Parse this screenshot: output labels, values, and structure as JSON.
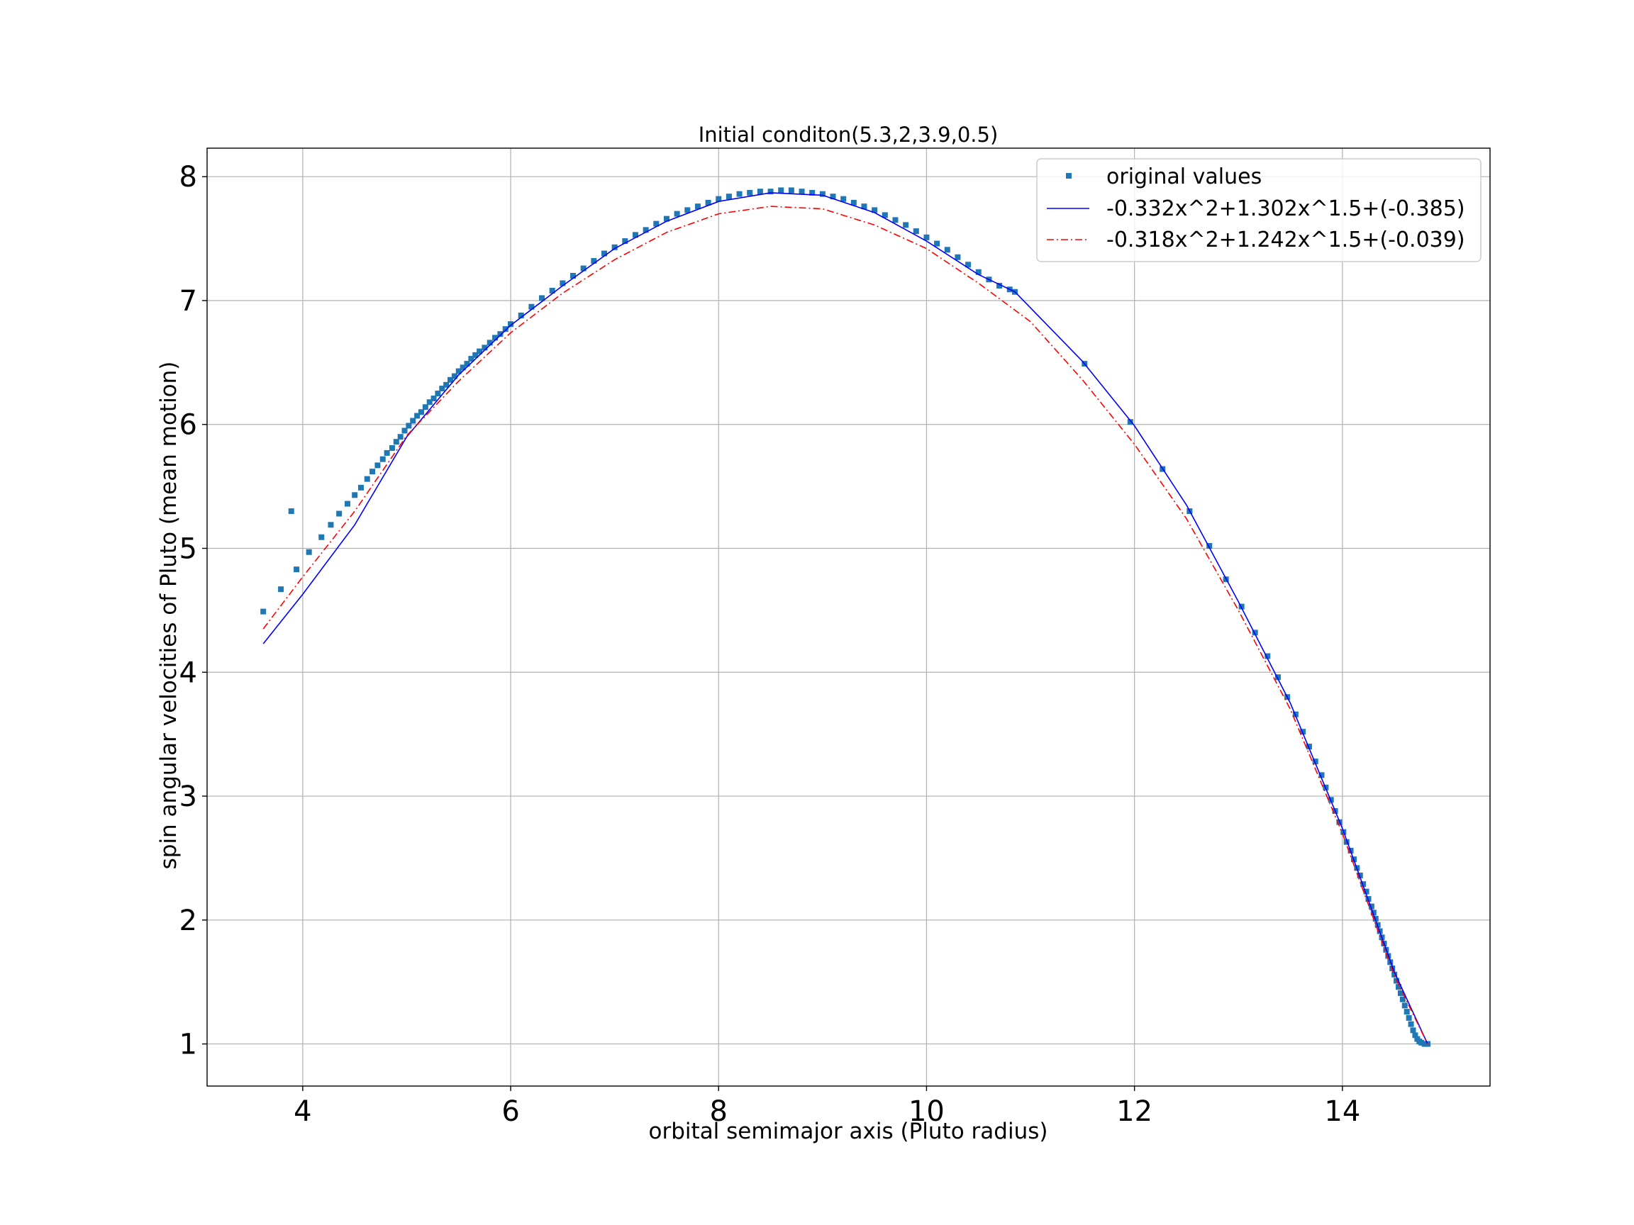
{
  "chart_data": {
    "type": "scatter",
    "title": "Initial conditon(5.3,2,3.9,0.5)",
    "xlabel": "orbital semimajor axis (Pluto radius)",
    "ylabel": "spin angular velocities of Pluto (mean motion)",
    "xlim": [
      3.08,
      15.42
    ],
    "ylim": [
      0.66,
      8.23
    ],
    "xticks": [
      4,
      6,
      8,
      10,
      12,
      14
    ],
    "yticks": [
      1,
      2,
      3,
      4,
      5,
      6,
      7,
      8
    ],
    "grid": true,
    "legend_position": "top-right",
    "series": [
      {
        "name": "original values",
        "kind": "scatter",
        "marker": "square",
        "color": "#1f77b4",
        "points": [
          [
            3.62,
            4.49
          ],
          [
            3.79,
            4.67
          ],
          [
            3.89,
            5.3
          ],
          [
            3.94,
            4.83
          ],
          [
            4.06,
            4.97
          ],
          [
            4.18,
            5.09
          ],
          [
            4.27,
            5.19
          ],
          [
            4.35,
            5.28
          ],
          [
            4.43,
            5.36
          ],
          [
            4.5,
            5.43
          ],
          [
            4.56,
            5.49
          ],
          [
            4.62,
            5.56
          ],
          [
            4.67,
            5.62
          ],
          [
            4.72,
            5.67
          ],
          [
            4.77,
            5.72
          ],
          [
            4.81,
            5.77
          ],
          [
            4.86,
            5.81
          ],
          [
            4.9,
            5.86
          ],
          [
            4.94,
            5.9
          ],
          [
            4.98,
            5.95
          ],
          [
            5.02,
            5.99
          ],
          [
            5.06,
            6.03
          ],
          [
            5.1,
            6.07
          ],
          [
            5.14,
            6.1
          ],
          [
            5.18,
            6.14
          ],
          [
            5.22,
            6.18
          ],
          [
            5.26,
            6.21
          ],
          [
            5.3,
            6.25
          ],
          [
            5.34,
            6.29
          ],
          [
            5.38,
            6.32
          ],
          [
            5.42,
            6.36
          ],
          [
            5.46,
            6.39
          ],
          [
            5.5,
            6.43
          ],
          [
            5.54,
            6.46
          ],
          [
            5.58,
            6.49
          ],
          [
            5.62,
            6.53
          ],
          [
            5.66,
            6.56
          ],
          [
            5.7,
            6.59
          ],
          [
            5.75,
            6.62
          ],
          [
            5.8,
            6.66
          ],
          [
            5.85,
            6.7
          ],
          [
            5.9,
            6.73
          ],
          [
            5.95,
            6.77
          ],
          [
            6.0,
            6.81
          ],
          [
            6.1,
            6.88
          ],
          [
            6.2,
            6.95
          ],
          [
            6.3,
            7.02
          ],
          [
            6.4,
            7.08
          ],
          [
            6.5,
            7.14
          ],
          [
            6.6,
            7.2
          ],
          [
            6.7,
            7.26
          ],
          [
            6.8,
            7.32
          ],
          [
            6.9,
            7.38
          ],
          [
            7.0,
            7.43
          ],
          [
            7.1,
            7.48
          ],
          [
            7.2,
            7.53
          ],
          [
            7.3,
            7.57
          ],
          [
            7.4,
            7.62
          ],
          [
            7.5,
            7.66
          ],
          [
            7.6,
            7.7
          ],
          [
            7.7,
            7.73
          ],
          [
            7.8,
            7.76
          ],
          [
            7.9,
            7.79
          ],
          [
            8.0,
            7.82
          ],
          [
            8.1,
            7.84
          ],
          [
            8.2,
            7.86
          ],
          [
            8.3,
            7.87
          ],
          [
            8.4,
            7.88
          ],
          [
            8.5,
            7.88
          ],
          [
            8.6,
            7.89
          ],
          [
            8.7,
            7.89
          ],
          [
            8.8,
            7.88
          ],
          [
            8.9,
            7.87
          ],
          [
            9.0,
            7.86
          ],
          [
            9.1,
            7.84
          ],
          [
            9.2,
            7.82
          ],
          [
            9.3,
            7.79
          ],
          [
            9.4,
            7.76
          ],
          [
            9.5,
            7.73
          ],
          [
            9.6,
            7.69
          ],
          [
            9.7,
            7.65
          ],
          [
            9.8,
            7.61
          ],
          [
            9.9,
            7.56
          ],
          [
            10.0,
            7.51
          ],
          [
            10.1,
            7.46
          ],
          [
            10.2,
            7.41
          ],
          [
            10.3,
            7.35
          ],
          [
            10.4,
            7.29
          ],
          [
            10.5,
            7.23
          ],
          [
            10.6,
            7.17
          ],
          [
            10.7,
            7.12
          ],
          [
            10.8,
            7.09
          ],
          [
            10.85,
            7.07
          ],
          [
            11.52,
            6.49
          ],
          [
            11.96,
            6.02
          ],
          [
            12.27,
            5.64
          ],
          [
            12.53,
            5.3
          ],
          [
            12.72,
            5.02
          ],
          [
            12.88,
            4.75
          ],
          [
            13.03,
            4.53
          ],
          [
            13.16,
            4.32
          ],
          [
            13.28,
            4.13
          ],
          [
            13.38,
            3.96
          ],
          [
            13.47,
            3.8
          ],
          [
            13.55,
            3.66
          ],
          [
            13.62,
            3.52
          ],
          [
            13.68,
            3.4
          ],
          [
            13.74,
            3.28
          ],
          [
            13.8,
            3.17
          ],
          [
            13.84,
            3.07
          ],
          [
            13.89,
            2.97
          ],
          [
            13.93,
            2.88
          ],
          [
            13.97,
            2.79
          ],
          [
            14.01,
            2.71
          ],
          [
            14.04,
            2.63
          ],
          [
            14.08,
            2.56
          ],
          [
            14.11,
            2.49
          ],
          [
            14.14,
            2.42
          ],
          [
            14.17,
            2.36
          ],
          [
            14.2,
            2.29
          ],
          [
            14.23,
            2.23
          ],
          [
            14.25,
            2.17
          ],
          [
            14.28,
            2.11
          ],
          [
            14.3,
            2.06
          ],
          [
            14.32,
            2.01
          ],
          [
            14.34,
            1.96
          ],
          [
            14.36,
            1.91
          ],
          [
            14.38,
            1.86
          ],
          [
            14.4,
            1.81
          ],
          [
            14.42,
            1.76
          ],
          [
            14.44,
            1.71
          ],
          [
            14.46,
            1.66
          ],
          [
            14.48,
            1.61
          ],
          [
            14.5,
            1.56
          ],
          [
            14.52,
            1.51
          ],
          [
            14.54,
            1.46
          ],
          [
            14.56,
            1.41
          ],
          [
            14.58,
            1.36
          ],
          [
            14.6,
            1.31
          ],
          [
            14.62,
            1.26
          ],
          [
            14.64,
            1.21
          ],
          [
            14.66,
            1.16
          ],
          [
            14.68,
            1.11
          ],
          [
            14.7,
            1.07
          ],
          [
            14.72,
            1.04
          ],
          [
            14.74,
            1.02
          ],
          [
            14.76,
            1.01
          ],
          [
            14.79,
            1.0
          ],
          [
            14.82,
            1.0
          ]
        ]
      },
      {
        "name": "-0.332x^2+1.302x^1.5+(-0.385)",
        "kind": "line",
        "style": "solid",
        "color": "#0000ff",
        "points": [
          [
            3.62,
            4.23
          ],
          [
            4.0,
            4.63
          ],
          [
            4.5,
            5.19
          ],
          [
            5.0,
            5.9
          ],
          [
            5.5,
            6.4
          ],
          [
            6.0,
            6.8
          ],
          [
            6.5,
            7.12
          ],
          [
            7.0,
            7.42
          ],
          [
            7.5,
            7.64
          ],
          [
            8.0,
            7.8
          ],
          [
            8.5,
            7.87
          ],
          [
            9.0,
            7.85
          ],
          [
            9.5,
            7.71
          ],
          [
            10.0,
            7.48
          ],
          [
            10.5,
            7.21
          ],
          [
            10.85,
            7.07
          ],
          [
            11.5,
            6.51
          ],
          [
            12.0,
            5.99
          ],
          [
            12.5,
            5.35
          ],
          [
            13.0,
            4.57
          ],
          [
            13.5,
            3.75
          ],
          [
            14.0,
            2.74
          ],
          [
            14.5,
            1.58
          ],
          [
            14.82,
            1.0
          ]
        ]
      },
      {
        "name": "-0.318x^2+1.242x^1.5+(-0.039)",
        "kind": "line",
        "style": "dashdot",
        "color": "#ff0000",
        "points": [
          [
            3.62,
            4.35
          ],
          [
            4.0,
            4.77
          ],
          [
            4.5,
            5.3
          ],
          [
            5.0,
            5.91
          ],
          [
            5.5,
            6.35
          ],
          [
            6.0,
            6.74
          ],
          [
            6.5,
            7.06
          ],
          [
            7.0,
            7.33
          ],
          [
            7.5,
            7.55
          ],
          [
            8.0,
            7.7
          ],
          [
            8.5,
            7.76
          ],
          [
            9.0,
            7.74
          ],
          [
            9.5,
            7.61
          ],
          [
            10.0,
            7.42
          ],
          [
            10.5,
            7.14
          ],
          [
            11.0,
            6.83
          ],
          [
            11.5,
            6.36
          ],
          [
            12.0,
            5.84
          ],
          [
            12.5,
            5.24
          ],
          [
            13.0,
            4.5
          ],
          [
            13.5,
            3.7
          ],
          [
            14.0,
            2.7
          ],
          [
            14.5,
            1.55
          ],
          [
            14.82,
            1.0
          ]
        ]
      }
    ]
  }
}
